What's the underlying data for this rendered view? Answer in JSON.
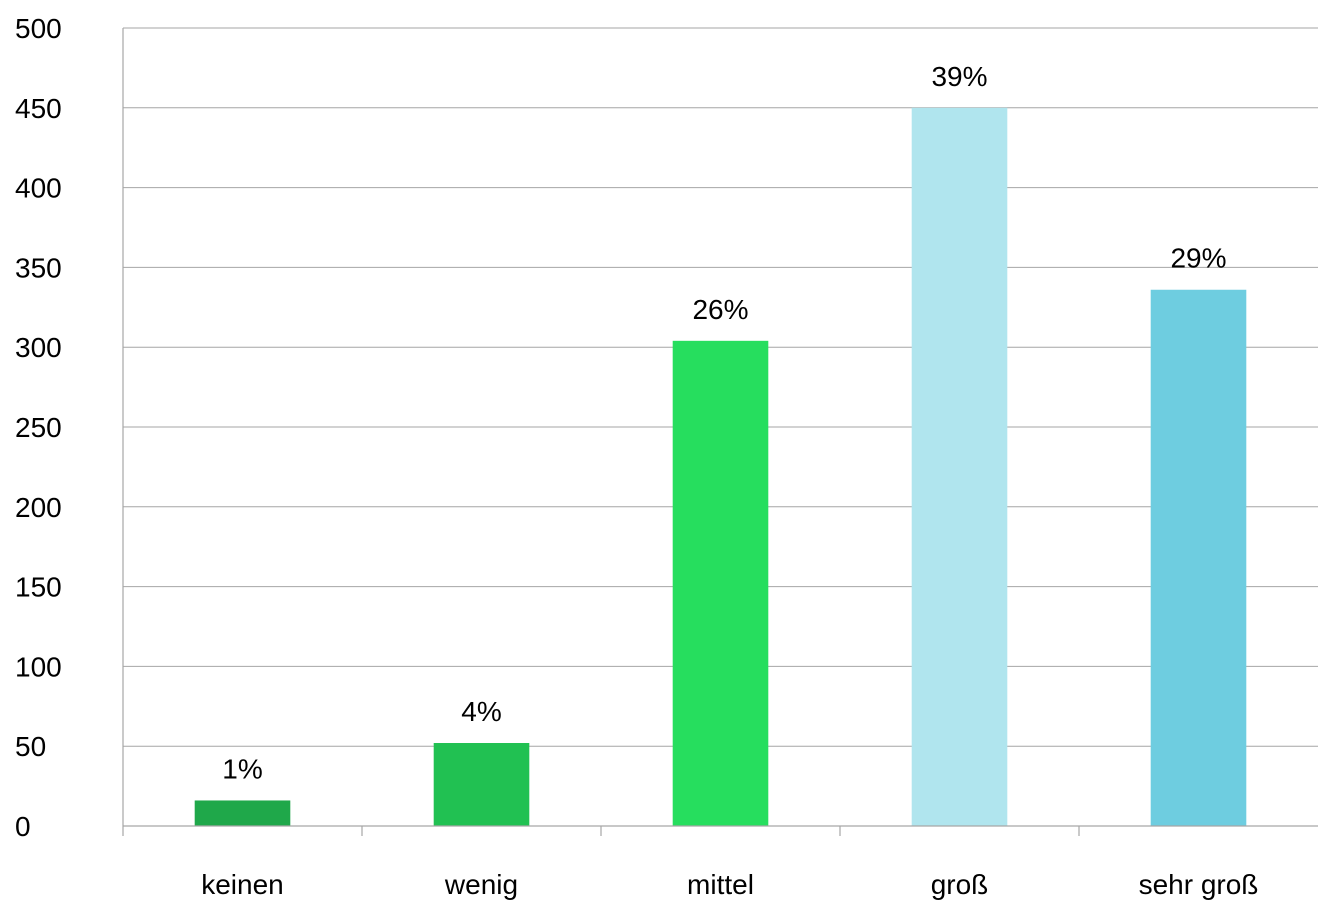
{
  "chart_data": {
    "type": "bar",
    "title": "",
    "xlabel": "",
    "ylabel": "",
    "categories": [
      "keinen",
      "wenig",
      "mittel",
      "groß",
      "sehr groß"
    ],
    "values": [
      16,
      52,
      304,
      450,
      336
    ],
    "data_labels": [
      "1%",
      "4%",
      "26%",
      "39%",
      "29%"
    ],
    "colors": [
      "#1fa84a",
      "#21c152",
      "#26de5e",
      "#b0e5ee",
      "#6ecde0"
    ],
    "ylim": [
      0,
      500
    ],
    "yticks": [
      0,
      50,
      100,
      150,
      200,
      250,
      300,
      350,
      400,
      450,
      500
    ],
    "grid": true,
    "legend": "none"
  }
}
